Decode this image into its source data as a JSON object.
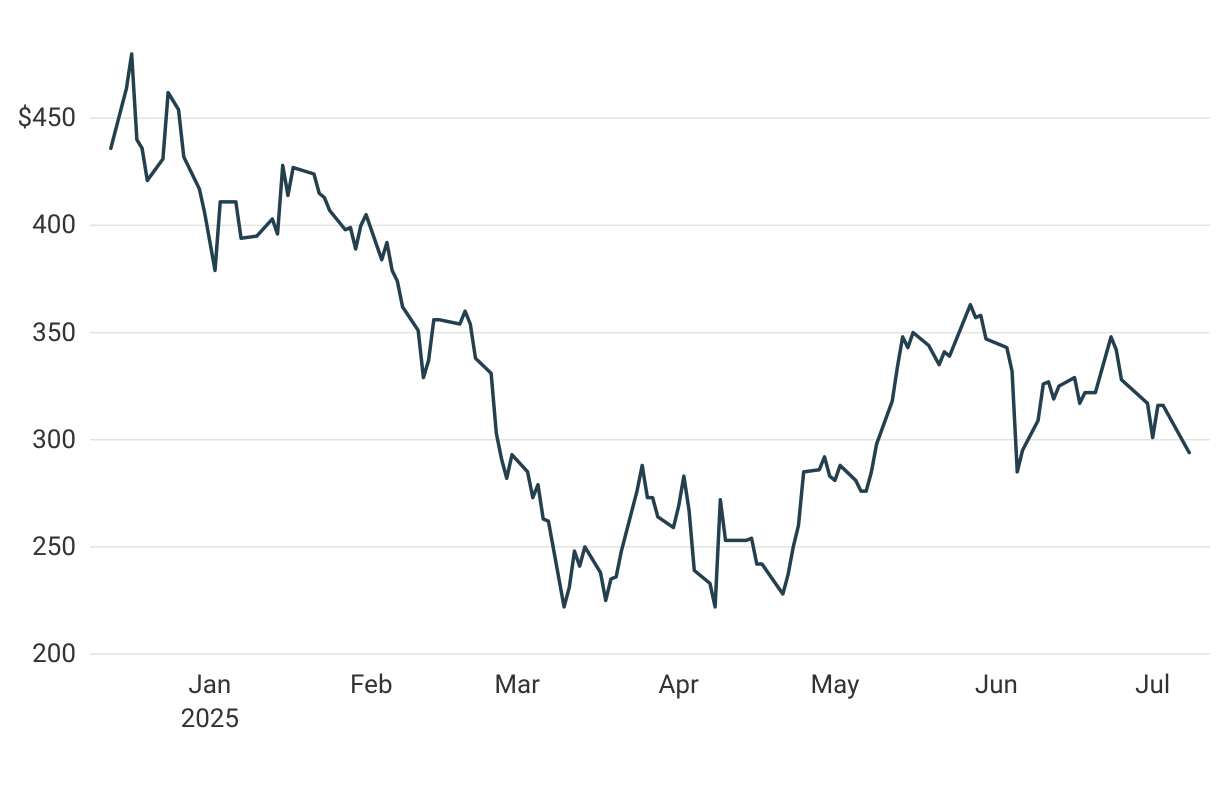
{
  "chart_data": {
    "type": "line",
    "x": [
      "2024-12-13",
      "2024-12-16",
      "2024-12-17",
      "2024-12-18",
      "2024-12-19",
      "2024-12-20",
      "2024-12-23",
      "2024-12-24",
      "2024-12-26",
      "2024-12-27",
      "2024-12-30",
      "2024-12-31",
      "2025-01-02",
      "2025-01-03",
      "2025-01-06",
      "2025-01-07",
      "2025-01-10",
      "2025-01-13",
      "2025-01-14",
      "2025-01-15",
      "2025-01-16",
      "2025-01-17",
      "2025-01-21",
      "2025-01-22",
      "2025-01-23",
      "2025-01-24",
      "2025-01-27",
      "2025-01-28",
      "2025-01-29",
      "2025-01-30",
      "2025-01-31",
      "2025-02-03",
      "2025-02-04",
      "2025-02-05",
      "2025-02-06",
      "2025-02-07",
      "2025-02-10",
      "2025-02-11",
      "2025-02-12",
      "2025-02-13",
      "2025-02-14",
      "2025-02-18",
      "2025-02-19",
      "2025-02-20",
      "2025-02-21",
      "2025-02-24",
      "2025-02-25",
      "2025-02-26",
      "2025-02-27",
      "2025-02-28",
      "2025-03-03",
      "2025-03-04",
      "2025-03-05",
      "2025-03-06",
      "2025-03-07",
      "2025-03-10",
      "2025-03-11",
      "2025-03-12",
      "2025-03-13",
      "2025-03-14",
      "2025-03-17",
      "2025-03-18",
      "2025-03-19",
      "2025-03-20",
      "2025-03-21",
      "2025-03-24",
      "2025-03-25",
      "2025-03-26",
      "2025-03-27",
      "2025-03-28",
      "2025-03-31",
      "2025-04-01",
      "2025-04-02",
      "2025-04-03",
      "2025-04-04",
      "2025-04-07",
      "2025-04-08",
      "2025-04-09",
      "2025-04-10",
      "2025-04-11",
      "2025-04-14",
      "2025-04-15",
      "2025-04-16",
      "2025-04-17",
      "2025-04-21",
      "2025-04-22",
      "2025-04-23",
      "2025-04-24",
      "2025-04-25",
      "2025-04-28",
      "2025-04-29",
      "2025-04-30",
      "2025-05-01",
      "2025-05-02",
      "2025-05-05",
      "2025-05-06",
      "2025-05-07",
      "2025-05-08",
      "2025-05-09",
      "2025-05-12",
      "2025-05-13",
      "2025-05-14",
      "2025-05-15",
      "2025-05-16",
      "2025-05-19",
      "2025-05-21",
      "2025-05-22",
      "2025-05-23",
      "2025-05-27",
      "2025-05-28",
      "2025-05-29",
      "2025-05-30",
      "2025-06-02",
      "2025-06-03",
      "2025-06-04",
      "2025-06-05",
      "2025-06-06",
      "2025-06-09",
      "2025-06-10",
      "2025-06-11",
      "2025-06-12",
      "2025-06-13",
      "2025-06-16",
      "2025-06-17",
      "2025-06-18",
      "2025-06-20",
      "2025-06-23",
      "2025-06-24",
      "2025-06-25",
      "2025-06-30",
      "2025-07-01",
      "2025-07-02",
      "2025-07-03",
      "2025-07-08"
    ],
    "series": [
      {
        "color": "#24404f",
        "values": [
          436,
          464,
          480,
          440,
          436,
          421,
          431,
          462,
          454,
          432,
          417,
          406,
          379,
          411,
          411,
          394,
          395,
          403,
          396,
          428,
          414,
          427,
          424,
          415,
          413,
          407,
          398,
          399,
          389,
          400,
          405,
          384,
          392,
          379,
          374,
          362,
          351,
          329,
          337,
          356,
          356,
          354,
          360,
          354,
          338,
          331,
          303,
          291,
          282,
          293,
          285,
          273,
          279,
          263,
          262,
          222,
          231,
          248,
          241,
          250,
          238,
          225,
          235,
          236,
          248,
          276,
          288,
          273,
          273,
          264,
          259,
          269,
          283,
          267,
          239,
          233,
          222,
          272,
          253,
          253,
          253,
          254,
          242,
          242,
          228,
          237,
          250,
          260,
          285,
          286,
          292,
          283,
          281,
          288,
          281,
          276,
          276,
          285,
          298,
          318,
          334,
          348,
          343,
          350,
          344,
          335,
          341,
          339,
          363,
          357,
          358,
          347,
          344,
          343,
          332,
          285,
          295,
          309,
          326,
          327,
          319,
          325,
          329,
          317,
          322,
          322,
          348,
          342,
          328,
          317,
          301,
          316,
          316,
          294
        ]
      }
    ],
    "xlim": [
      "2024-12-09",
      "2025-07-12"
    ],
    "xticks": [
      {
        "value": "2025-01-01",
        "label": "Jan\n2025"
      },
      {
        "value": "2025-02-01",
        "label": "Feb"
      },
      {
        "value": "2025-03-01",
        "label": "Mar"
      },
      {
        "value": "2025-04-01",
        "label": "Apr"
      },
      {
        "value": "2025-05-01",
        "label": "May"
      },
      {
        "value": "2025-06-01",
        "label": "Jun"
      },
      {
        "value": "2025-07-01",
        "label": "Jul"
      }
    ],
    "ylim": [
      200,
      487
    ],
    "yticks": [
      200,
      250,
      300,
      350,
      400,
      {
        "value": 450,
        "label": "$450"
      }
    ],
    "grid": true
  }
}
